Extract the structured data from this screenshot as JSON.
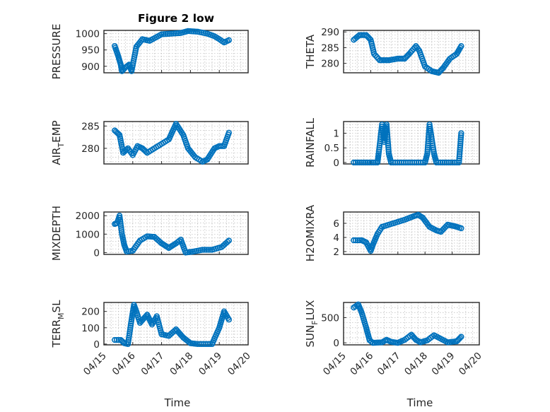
{
  "chart_data": {
    "type": "scatter",
    "title": "Figure 2 low",
    "xlabel": "Time",
    "x_ticks": [
      "04/15",
      "04/16",
      "04/17",
      "04/18",
      "04/19",
      "04/20"
    ],
    "x_range": [
      "04/15",
      "04/20"
    ],
    "marker": "circle",
    "marker_color": "#0072BD",
    "grid": true,
    "panels": [
      {
        "ylabel": "PRESSURE",
        "ylim": [
          880,
          1010
        ],
        "yticks": [
          900,
          950,
          1000
        ],
        "series": [
          {
            "segments": [
              [
                "04/15 09:00",
                962
              ],
              [
                "04/15 12:00",
                930
              ],
              [
                "04/15 14:00",
                905
              ],
              [
                "04/15 15:00",
                885
              ],
              [
                "04/15 18:00",
                897
              ],
              [
                "04/15 21:00",
                905
              ],
              [
                "04/15 23:00",
                885
              ],
              [
                "04/16 03:00",
                960
              ],
              [
                "04/16 08:00",
                983
              ],
              [
                "04/16 14:00",
                978
              ],
              [
                "04/17 00:00",
                998
              ],
              [
                "04/17 08:00",
                1000
              ],
              [
                "04/17 16:00",
                1002
              ],
              [
                "04/17 22:00",
                1008
              ],
              [
                "04/18 06:00",
                1006
              ],
              [
                "04/18 14:00",
                1000
              ],
              [
                "04/18 20:00",
                992
              ],
              [
                "04/19 00:00",
                983
              ],
              [
                "04/19 04:00",
                973
              ],
              [
                "04/19 08:00",
                980
              ]
            ]
          }
        ]
      },
      {
        "ylabel": "THETA",
        "ylim": [
          277,
          290.5
        ],
        "yticks": [
          280,
          285,
          290
        ],
        "series": [
          {
            "segments": [
              [
                "04/15 09:00",
                287.5
              ],
              [
                "04/15 14:00",
                289
              ],
              [
                "04/15 20:00",
                289
              ],
              [
                "04/16 00:00",
                287.5
              ],
              [
                "04/16 03:00",
                283
              ],
              [
                "04/16 08:00",
                281
              ],
              [
                "04/16 16:00",
                281
              ],
              [
                "04/17 00:00",
                281.5
              ],
              [
                "04/17 06:00",
                281.5
              ],
              [
                "04/17 10:00",
                283
              ],
              [
                "04/17 16:00",
                285.5
              ],
              [
                "04/17 19:00",
                284
              ],
              [
                "04/18 00:00",
                279
              ],
              [
                "04/18 06:00",
                277.5
              ],
              [
                "04/18 12:00",
                277
              ],
              [
                "04/18 16:00",
                278.5
              ],
              [
                "04/18 22:00",
                281.5
              ],
              [
                "04/19 04:00",
                283
              ],
              [
                "04/19 08:00",
                285.5
              ]
            ]
          }
        ]
      },
      {
        "ylabel": "AIR",
        "ylabel_sub": "T",
        "ylabel_tail": "EMP",
        "ylim": [
          276.5,
          286
        ],
        "yticks": [
          280,
          285
        ],
        "series": [
          {
            "segments": [
              [
                "04/15 09:00",
                284
              ],
              [
                "04/15 13:00",
                283
              ],
              [
                "04/15 16:00",
                279
              ],
              [
                "04/15 20:00",
                280
              ],
              [
                "04/16 00:00",
                278.5
              ],
              [
                "04/16 04:00",
                280.5
              ],
              [
                "04/16 08:00",
                280
              ],
              [
                "04/16 12:00",
                279
              ],
              [
                "04/16 18:00",
                280
              ],
              [
                "04/17 00:00",
                281
              ],
              [
                "04/17 06:00",
                282
              ],
              [
                "04/17 12:00",
                285.5
              ],
              [
                "04/17 18:00",
                283
              ],
              [
                "04/17 22:00",
                280
              ],
              [
                "04/18 04:00",
                278
              ],
              [
                "04/18 10:00",
                277
              ],
              [
                "04/18 14:00",
                277.5
              ],
              [
                "04/18 20:00",
                280
              ],
              [
                "04/19 00:00",
                280.5
              ],
              [
                "04/19 04:00",
                280.5
              ],
              [
                "04/19 08:00",
                283.5
              ]
            ]
          }
        ]
      },
      {
        "ylabel": "RAINFALL",
        "ylim": [
          -0.05,
          1.4
        ],
        "yticks": [
          0,
          0.5,
          1
        ],
        "series": [
          {
            "segments": [
              [
                "04/15 09:00",
                0
              ],
              [
                "04/16 06:00",
                0
              ],
              [
                "04/16 07:00",
                0.3
              ],
              [
                "04/16 10:00",
                1.3
              ],
              [
                "04/16 12:00",
                0.7
              ],
              [
                "04/16 13:00",
                1.0
              ],
              [
                "04/16 14:00",
                1.3
              ],
              [
                "04/16 16:00",
                0.3
              ],
              [
                "04/16 18:00",
                0
              ],
              [
                "04/18 00:00",
                0
              ],
              [
                "04/18 02:00",
                0.3
              ],
              [
                "04/18 04:00",
                1.3
              ],
              [
                "04/18 08:00",
                0.3
              ],
              [
                "04/18 10:00",
                0
              ],
              [
                "04/19 06:00",
                0
              ],
              [
                "04/19 08:00",
                1.0
              ]
            ]
          }
        ]
      },
      {
        "ylabel": "MIXDEPTH",
        "ylim": [
          -100,
          2200
        ],
        "yticks": [
          0,
          1000,
          2000
        ],
        "series": [
          {
            "segments": [
              [
                "04/15 09:00",
                1550
              ],
              [
                "04/15 11:00",
                1600
              ],
              [
                "04/15 13:00",
                2000
              ],
              [
                "04/15 15:00",
                1000
              ],
              [
                "04/15 17:00",
                400
              ],
              [
                "04/15 19:00",
                50
              ],
              [
                "04/16 00:00",
                100
              ],
              [
                "04/16 06:00",
                650
              ],
              [
                "04/16 12:00",
                880
              ],
              [
                "04/16 18:00",
                850
              ],
              [
                "04/17 00:00",
                500
              ],
              [
                "04/17 06:00",
                250
              ],
              [
                "04/17 12:00",
                500
              ],
              [
                "04/17 16:00",
                700
              ],
              [
                "04/17 20:00",
                0
              ],
              [
                "04/18 02:00",
                50
              ],
              [
                "04/18 10:00",
                150
              ],
              [
                "04/18 18:00",
                150
              ],
              [
                "04/19 02:00",
                300
              ],
              [
                "04/19 08:00",
                650
              ]
            ]
          }
        ]
      },
      {
        "ylabel": "H2OMIXRA",
        "ylim": [
          1.6,
          7.6
        ],
        "yticks": [
          2,
          4,
          6
        ],
        "series": [
          {
            "segments": [
              [
                "04/15 09:00",
                3.6
              ],
              [
                "04/15 16:00",
                3.6
              ],
              [
                "04/15 20:00",
                3.3
              ],
              [
                "04/16 00:00",
                2.1
              ],
              [
                "04/16 02:00",
                3.0
              ],
              [
                "04/16 06:00",
                4.5
              ],
              [
                "04/16 10:00",
                5.5
              ],
              [
                "04/16 20:00",
                6.0
              ],
              [
                "04/17 06:00",
                6.5
              ],
              [
                "04/17 14:00",
                7.0
              ],
              [
                "04/17 18:00",
                7.2
              ],
              [
                "04/17 22:00",
                6.8
              ],
              [
                "04/18 04:00",
                5.5
              ],
              [
                "04/18 10:00",
                5.0
              ],
              [
                "04/18 14:00",
                4.8
              ],
              [
                "04/18 20:00",
                5.8
              ],
              [
                "04/19 02:00",
                5.6
              ],
              [
                "04/19 08:00",
                5.3
              ]
            ]
          }
        ]
      },
      {
        "ylabel": "TERR",
        "ylabel_sub": "M",
        "ylabel_tail": "SL",
        "ylim": [
          -5,
          255
        ],
        "yticks": [
          0,
          100,
          200
        ],
        "series": [
          {
            "segments": [
              [
                "04/15 09:00",
                25
              ],
              [
                "04/15 14:00",
                25
              ],
              [
                "04/15 17:00",
                5
              ],
              [
                "04/15 20:00",
                0
              ],
              [
                "04/15 23:00",
                150
              ],
              [
                "04/16 01:00",
                240
              ],
              [
                "04/16 03:00",
                200
              ],
              [
                "04/16 06:00",
                130
              ],
              [
                "04/16 12:00",
                180
              ],
              [
                "04/16 16:00",
                120
              ],
              [
                "04/16 20:00",
                170
              ],
              [
                "04/17 00:00",
                60
              ],
              [
                "04/17 06:00",
                50
              ],
              [
                "04/17 12:00",
                90
              ],
              [
                "04/17 18:00",
                40
              ],
              [
                "04/18 00:00",
                5
              ],
              [
                "04/18 06:00",
                0
              ],
              [
                "04/18 18:00",
                0
              ],
              [
                "04/19 00:00",
                100
              ],
              [
                "04/19 04:00",
                200
              ],
              [
                "04/19 08:00",
                150
              ]
            ]
          }
        ]
      },
      {
        "ylabel": "SUN",
        "ylabel_sub": "F",
        "ylabel_tail": "LUX",
        "ylim": [
          -40,
          800
        ],
        "yticks": [
          0,
          500
        ],
        "series": [
          {
            "segments": [
              [
                "04/15 09:00",
                700
              ],
              [
                "04/15 13:00",
                760
              ],
              [
                "04/15 16:00",
                600
              ],
              [
                "04/15 20:00",
                300
              ],
              [
                "04/15 23:00",
                50
              ],
              [
                "04/16 02:00",
                0
              ],
              [
                "04/16 10:00",
                10
              ],
              [
                "04/16 14:00",
                60
              ],
              [
                "04/16 18:00",
                20
              ],
              [
                "04/17 00:00",
                0
              ],
              [
                "04/17 06:00",
                60
              ],
              [
                "04/17 12:00",
                160
              ],
              [
                "04/17 16:00",
                60
              ],
              [
                "04/17 20:00",
                10
              ],
              [
                "04/18 02:00",
                50
              ],
              [
                "04/18 08:00",
                150
              ],
              [
                "04/18 14:00",
                80
              ],
              [
                "04/18 20:00",
                10
              ],
              [
                "04/19 04:00",
                30
              ],
              [
                "04/19 08:00",
                120
              ]
            ]
          }
        ]
      }
    ]
  }
}
